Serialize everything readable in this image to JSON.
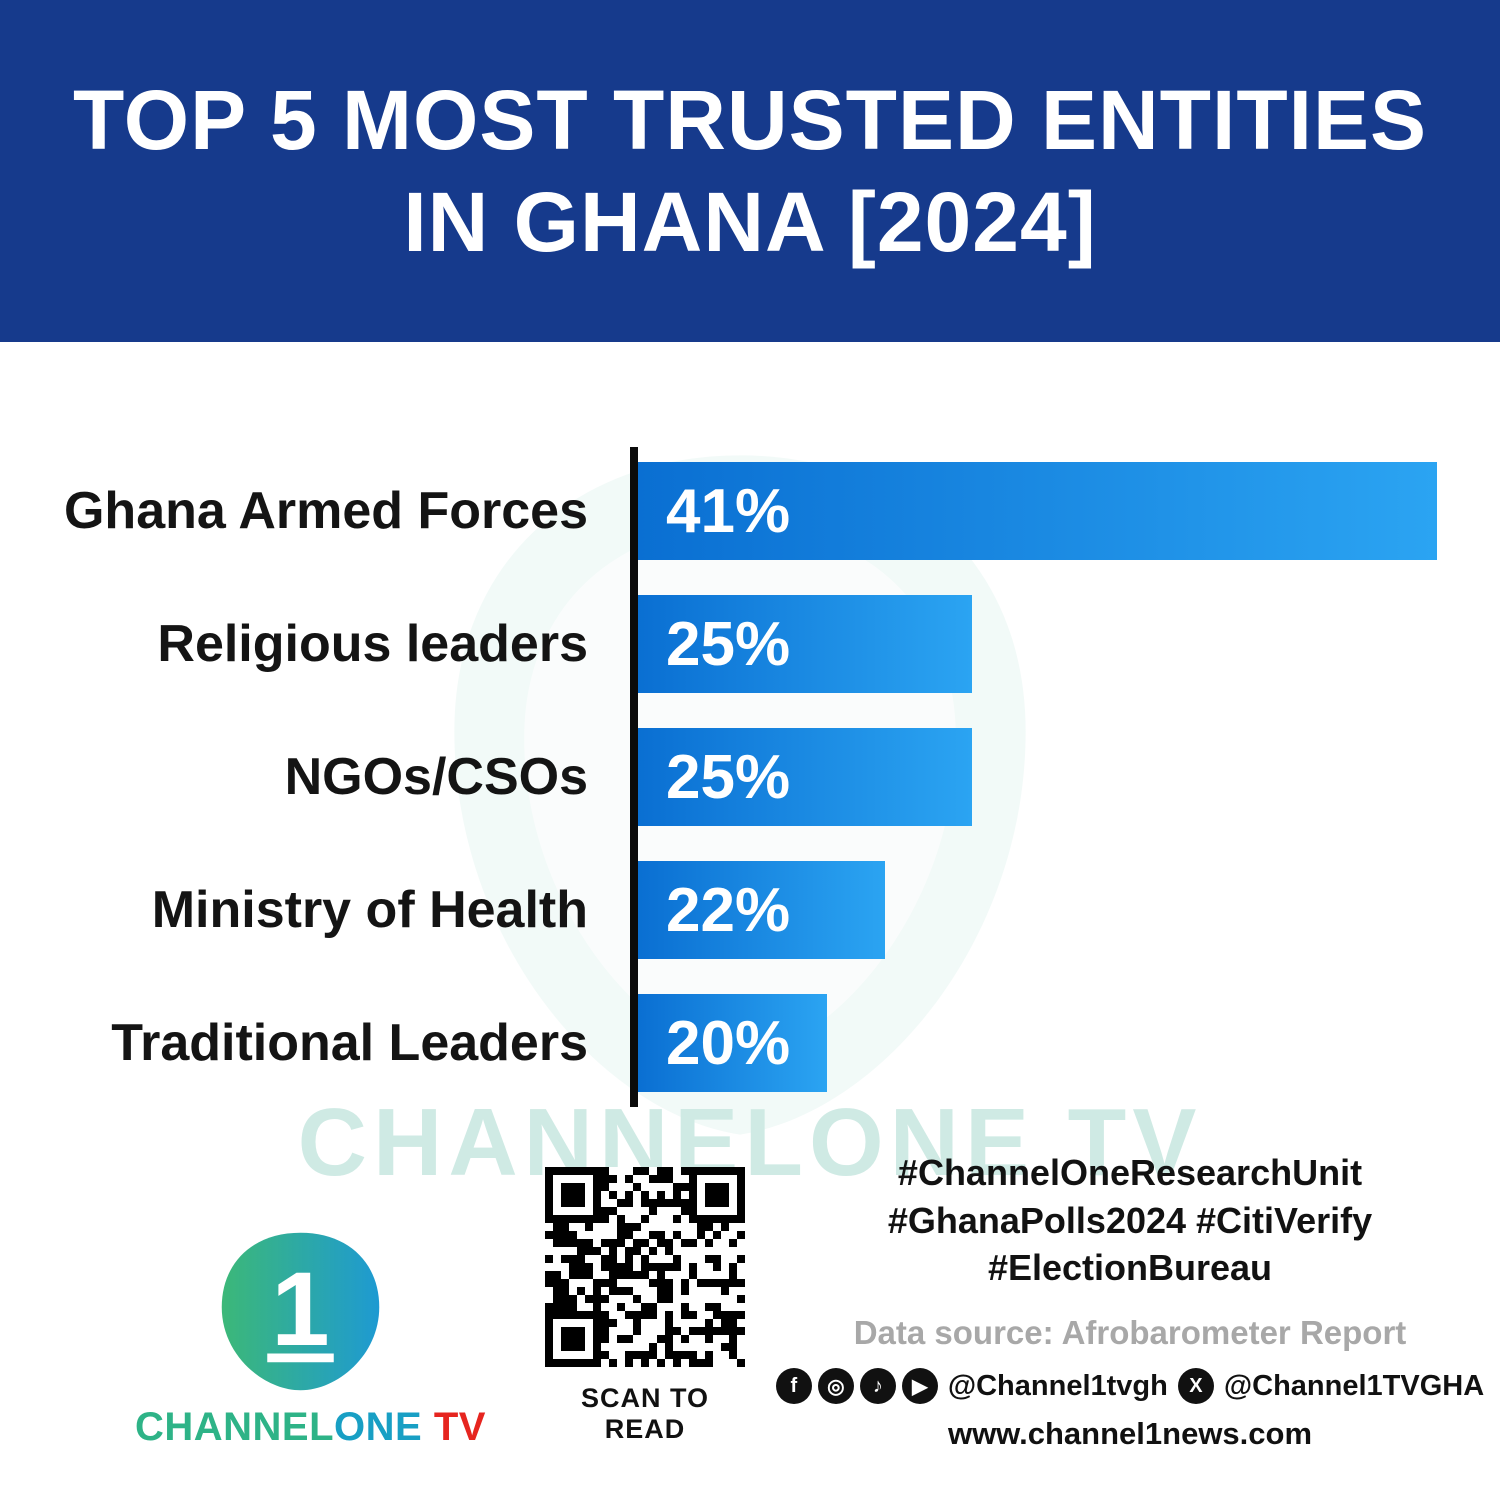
{
  "header": {
    "title_line1": "TOP 5 MOST TRUSTED ENTITIES",
    "title_line2": "IN GHANA [2024]"
  },
  "chart_data": {
    "type": "bar",
    "orientation": "horizontal",
    "title": "Top 5 Most Trusted Entities in Ghana [2024]",
    "categories": [
      "Ghana Armed Forces",
      "Religious leaders",
      "NGOs/CSOs",
      "Ministry of Health",
      "Traditional Leaders"
    ],
    "values": [
      41,
      25,
      25,
      22,
      20
    ],
    "value_labels": [
      "41%",
      "25%",
      "25%",
      "22%",
      "20%"
    ],
    "xlim": [
      13.5,
      41
    ],
    "grid": false,
    "legend": false
  },
  "watermark": {
    "text": "CHANNELONE TV"
  },
  "footer": {
    "logo": {
      "digit": "1",
      "brand_channel": "CHANNEL",
      "brand_one": "ONE",
      "brand_tv": " TV"
    },
    "qr_caption": "SCAN TO READ",
    "hashtags_line1": "#ChannelOneResearchUnit",
    "hashtags_line2": "#GhanaPolls2024 #CitiVerify",
    "hashtags_line3": "#ElectionBureau",
    "data_source": "Data source: Afrobarometer Report",
    "social_icons": [
      {
        "name": "facebook-icon",
        "glyph": "f"
      },
      {
        "name": "instagram-icon",
        "glyph": "◎"
      },
      {
        "name": "tiktok-icon",
        "glyph": "♪"
      },
      {
        "name": "youtube-icon",
        "glyph": "▶"
      }
    ],
    "social_handle_main": "@Channel1tvgh",
    "x_icon_glyph": "X",
    "social_handle_x": "@Channel1TVGHA",
    "website": "www.channel1news.com"
  },
  "colors": {
    "header_bg": "#163a8c",
    "bar_gradient_start": "#0a6fd2",
    "bar_gradient_end": "#2ba4f2",
    "brand_teal": "#2eb387",
    "brand_red": "#e6251f",
    "source_gray": "#a8a8a8",
    "watermark_teal": "#cfeae4"
  }
}
